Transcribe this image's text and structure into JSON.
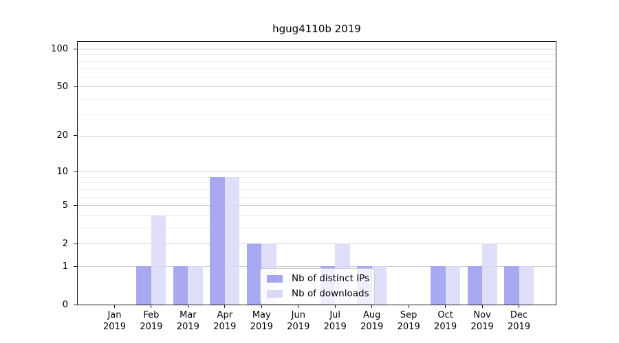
{
  "chart_data": {
    "type": "bar",
    "title": "hgug4110b 2019",
    "categories": [
      "Jan 2019",
      "Feb 2019",
      "Mar 2019",
      "Apr 2019",
      "May 2019",
      "Jun 2019",
      "Jul 2019",
      "Aug 2019",
      "Sep 2019",
      "Oct 2019",
      "Nov 2019",
      "Dec 2019"
    ],
    "series": [
      {
        "name": "Nb of distinct IPs",
        "color": "#a4a4f1",
        "values": [
          0,
          1,
          1,
          9,
          2,
          0,
          1,
          1,
          0,
          1,
          1,
          1
        ]
      },
      {
        "name": "Nb of downloads",
        "color": "#d9d9f8",
        "values": [
          0,
          4,
          1,
          9,
          2,
          0,
          2,
          1,
          0,
          1,
          2,
          1
        ]
      }
    ],
    "xlabel": "",
    "ylabel": "",
    "y_axis": {
      "ticks": [
        0,
        1,
        2,
        5,
        10,
        20,
        50,
        100
      ],
      "minor_gridlines": [
        3,
        4,
        6,
        7,
        8,
        9,
        30,
        40,
        60,
        70,
        80,
        90
      ],
      "scale": "log10(value+1)",
      "range": [
        0,
        115
      ]
    },
    "grid": "horizontal",
    "legend_position": "inside-bottom-center",
    "colors": {
      "axis": "#1a1a1a",
      "major_grid": "#cfcfcf",
      "minor_grid": "#ececec",
      "background": "#ffffff"
    }
  }
}
